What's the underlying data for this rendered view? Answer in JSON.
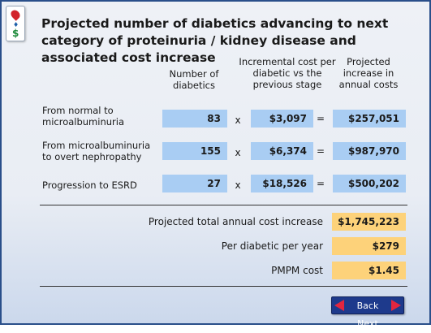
{
  "title": "Projected number of diabetics advancing to next category of proteinuria / kidney disease and associated cost increase",
  "columns": {
    "number": "Number of diabetics",
    "incremental": "Incremental cost per diabetic vs the previous stage",
    "projected": "Projected increase in annual costs"
  },
  "operators": {
    "times": "x",
    "equals": "="
  },
  "rows": [
    {
      "label": "From normal to microalbuminuria",
      "count": "83",
      "cost": "$3,097",
      "total": "$257,051"
    },
    {
      "label": "From microalbuminuria to overt nephropathy",
      "count": "155",
      "cost": "$6,374",
      "total": "$987,970"
    },
    {
      "label": "Progression to ESRD",
      "count": "27",
      "cost": "$18,526",
      "total": "$500,202"
    }
  ],
  "summary": [
    {
      "label": "Projected total annual cost increase",
      "value": "$1,745,223"
    },
    {
      "label": "Per diabetic per year",
      "value": "$279"
    },
    {
      "label": "PMPM cost",
      "value": "$1.45"
    }
  ],
  "nav": {
    "back_label": "Back",
    "next_label": "Next"
  },
  "logo": {
    "mid_glyph": "♦",
    "dollar_glyph": "$"
  },
  "colors": {
    "blue_cell": "#a9cdf3",
    "gold_cell": "#fdd27a",
    "nav_bg": "#1e3a8c",
    "nav_arrow": "#e3263f"
  }
}
